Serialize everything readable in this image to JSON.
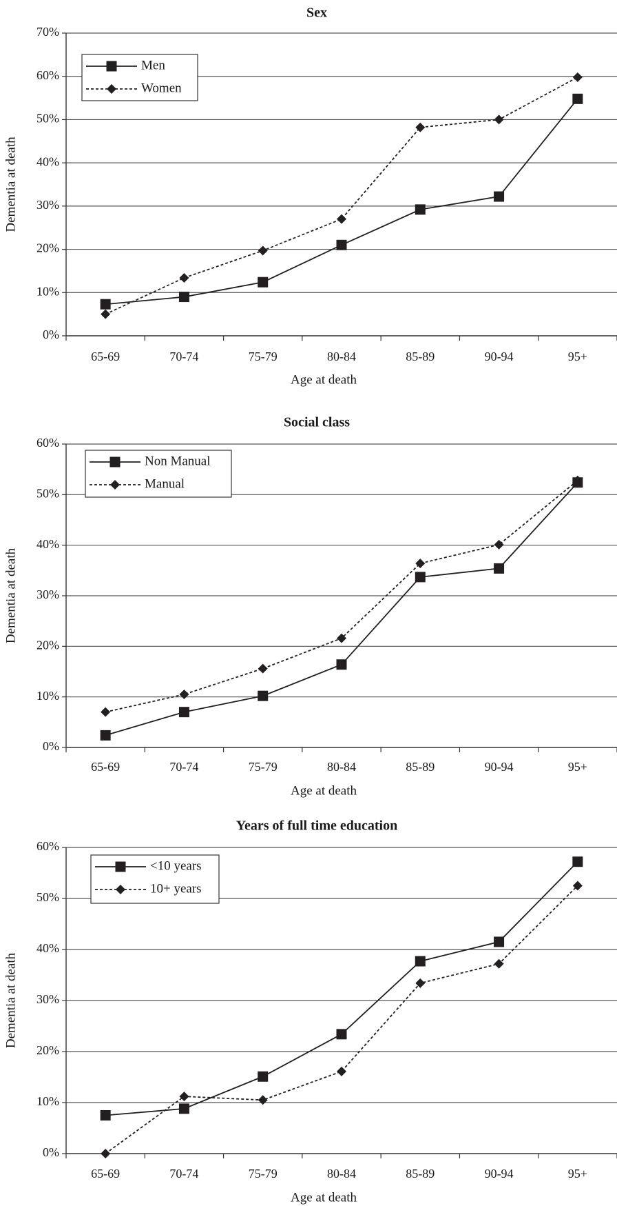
{
  "chart_data": [
    {
      "type": "line",
      "title": "Sex",
      "xlabel": "Age at death",
      "ylabel": "Dementia at death",
      "categories": [
        "65-69",
        "70-74",
        "75-79",
        "80-84",
        "85-89",
        "90-94",
        "95+"
      ],
      "ylim": [
        0,
        70
      ],
      "y_ticks": [
        "0%",
        "10%",
        "20%",
        "30%",
        "40%",
        "50%",
        "60%",
        "70%"
      ],
      "grid": true,
      "legend": "top-left",
      "series": [
        {
          "name": "Men",
          "marker": "square",
          "style": "solid",
          "values": [
            7.3,
            9.0,
            12.4,
            21.0,
            29.2,
            32.2,
            54.8
          ]
        },
        {
          "name": "Women",
          "marker": "diamond",
          "style": "dotted",
          "values": [
            5.0,
            13.4,
            19.7,
            27.0,
            48.2,
            50.0,
            59.8
          ]
        }
      ]
    },
    {
      "type": "line",
      "title": "Social class",
      "xlabel": "Age at death",
      "ylabel": "Dementia at death",
      "categories": [
        "65-69",
        "70-74",
        "75-79",
        "80-84",
        "85-89",
        "90-94",
        "95+"
      ],
      "ylim": [
        0,
        60
      ],
      "y_ticks": [
        "0%",
        "10%",
        "20%",
        "30%",
        "40%",
        "50%",
        "60%"
      ],
      "grid": true,
      "legend": "top-left",
      "series": [
        {
          "name": "Non Manual",
          "marker": "square",
          "style": "solid",
          "values": [
            2.4,
            7.0,
            10.2,
            16.4,
            33.7,
            35.4,
            52.4
          ]
        },
        {
          "name": "Manual",
          "marker": "diamond",
          "style": "dotted",
          "values": [
            7.0,
            10.5,
            15.6,
            21.6,
            36.4,
            40.1,
            52.8
          ]
        }
      ]
    },
    {
      "type": "line",
      "title": "Years of full time education",
      "xlabel": "Age at death",
      "ylabel": "Dementia at death",
      "categories": [
        "65-69",
        "70-74",
        "75-79",
        "80-84",
        "85-89",
        "90-94",
        "95+"
      ],
      "ylim": [
        0,
        60
      ],
      "y_ticks": [
        "0%",
        "10%",
        "20%",
        "30%",
        "40%",
        "50%",
        "60%"
      ],
      "grid": true,
      "legend": "top-left",
      "series": [
        {
          "name": "<10 years",
          "marker": "square",
          "style": "solid",
          "values": [
            7.5,
            8.8,
            15.1,
            23.4,
            37.7,
            41.5,
            57.2
          ]
        },
        {
          "name": "10+ years",
          "marker": "diamond",
          "style": "dotted",
          "values": [
            0.0,
            11.2,
            10.5,
            16.1,
            33.4,
            37.2,
            52.5
          ]
        }
      ]
    }
  ]
}
